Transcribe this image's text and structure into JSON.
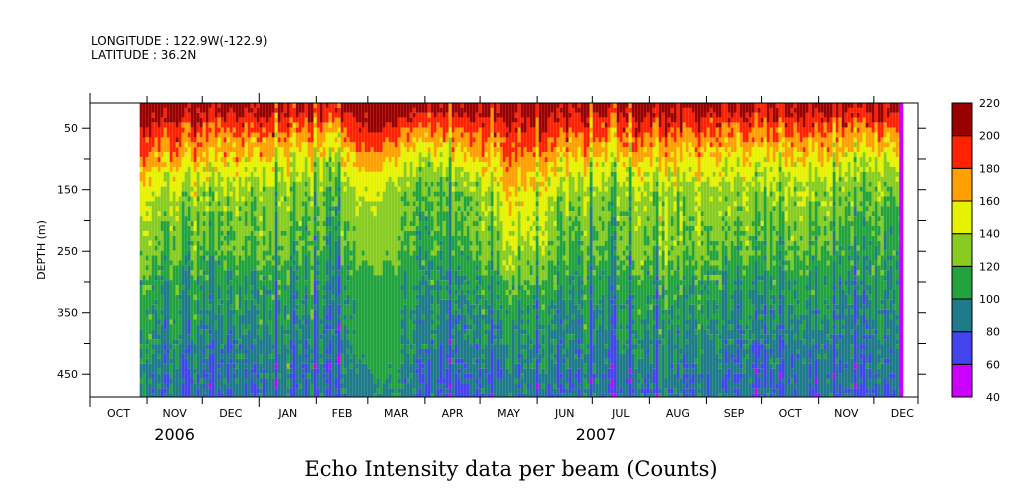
{
  "header": {
    "longitude": "LONGITUDE : 122.9W(-122.9)",
    "latitude": "LATITUDE : 36.2N"
  },
  "chart_data": {
    "type": "heatmap",
    "title": "Echo Intensity data per beam (Counts)",
    "ylabel": "DEPTH (m)",
    "xlabel": "",
    "x_units": "days since 2006-10-01",
    "xlim": [
      0,
      450
    ],
    "ylim": [
      487,
      9
    ],
    "data_range_days": [
      27,
      442
    ],
    "yticks": [
      50,
      150,
      250,
      350,
      450
    ],
    "yticks_minor": [
      100,
      200,
      300,
      400
    ],
    "month_ticks_days": [
      0,
      31,
      61,
      92,
      123,
      151,
      182,
      212,
      243,
      273,
      304,
      335,
      365,
      396,
      426
    ],
    "month_labels": [
      "OCT",
      "NOV",
      "DEC",
      "JAN",
      "FEB",
      "MAR",
      "APR",
      "MAY",
      "JUN",
      "JUL",
      "AUG",
      "SEP",
      "OCT",
      "NOV",
      "DEC"
    ],
    "year_labels": [
      {
        "label": "2006",
        "day": 46
      },
      {
        "label": "2007",
        "day": 275
      }
    ],
    "colorbar": {
      "levels": [
        40,
        60,
        80,
        100,
        120,
        140,
        160,
        180,
        200,
        220
      ],
      "labels": [
        "40",
        "60",
        "80",
        "100",
        "120",
        "140",
        "160",
        "180",
        "200",
        "220"
      ],
      "colors": [
        "#cc00ff",
        "#4444ee",
        "#1f7a8a",
        "#23a340",
        "#88cc22",
        "#e6f200",
        "#ffa000",
        "#ff2200",
        "#990000"
      ]
    },
    "profile_depths": [
      15,
      50,
      100,
      150,
      200,
      250,
      300,
      350,
      400,
      450,
      490
    ],
    "profiles": [
      {
        "day": 27,
        "noise": 9,
        "values": [
          215,
          190,
          165,
          140,
          125,
          118,
          105,
          100,
          95,
          88,
          85
        ]
      },
      {
        "day": 75,
        "noise": 9,
        "values": [
          210,
          185,
          160,
          135,
          125,
          120,
          105,
          100,
          92,
          87,
          85
        ]
      },
      {
        "day": 105,
        "noise": 9,
        "values": [
          205,
          180,
          150,
          130,
          125,
          118,
          105,
          100,
          95,
          90,
          88
        ]
      },
      {
        "day": 135,
        "noise": 10,
        "values": [
          205,
          175,
          145,
          125,
          120,
          112,
          103,
          98,
          92,
          88,
          85
        ]
      },
      {
        "day": 150,
        "noise": 3,
        "values": [
          210,
          202,
          170,
          145,
          132,
          128,
          112,
          110,
          110,
          95,
          92
        ]
      },
      {
        "day": 162,
        "noise": 3,
        "values": [
          215,
          195,
          160,
          135,
          130,
          125,
          112,
          110,
          110,
          105,
          100
        ]
      },
      {
        "day": 178,
        "noise": 10,
        "values": [
          210,
          175,
          140,
          120,
          115,
          110,
          103,
          98,
          92,
          86,
          82
        ]
      },
      {
        "day": 205,
        "noise": 9,
        "values": [
          210,
          190,
          155,
          130,
          125,
          118,
          105,
          100,
          95,
          88,
          85
        ]
      },
      {
        "day": 230,
        "noise": 9,
        "values": [
          210,
          195,
          175,
          158,
          148,
          140,
          120,
          105,
          98,
          90,
          87
        ]
      },
      {
        "day": 260,
        "noise": 9,
        "values": [
          210,
          190,
          160,
          135,
          125,
          118,
          105,
          100,
          95,
          90,
          85
        ]
      },
      {
        "day": 290,
        "noise": 9,
        "values": [
          210,
          185,
          155,
          130,
          125,
          120,
          108,
          102,
          95,
          88,
          85
        ]
      },
      {
        "day": 320,
        "noise": 9,
        "values": [
          210,
          188,
          158,
          138,
          130,
          125,
          110,
          104,
          97,
          90,
          87
        ]
      },
      {
        "day": 350,
        "noise": 9,
        "values": [
          210,
          185,
          155,
          135,
          128,
          122,
          108,
          102,
          95,
          90,
          87
        ]
      },
      {
        "day": 380,
        "noise": 9,
        "values": [
          210,
          188,
          160,
          138,
          128,
          122,
          108,
          102,
          95,
          88,
          85
        ]
      },
      {
        "day": 410,
        "noise": 9,
        "values": [
          208,
          182,
          150,
          130,
          122,
          115,
          105,
          100,
          94,
          88,
          85
        ]
      },
      {
        "day": 440,
        "noise": 9,
        "values": [
          205,
          175,
          140,
          120,
          110,
          105,
          100,
          95,
          90,
          85,
          82
        ]
      }
    ],
    "final_column_value": 45
  }
}
